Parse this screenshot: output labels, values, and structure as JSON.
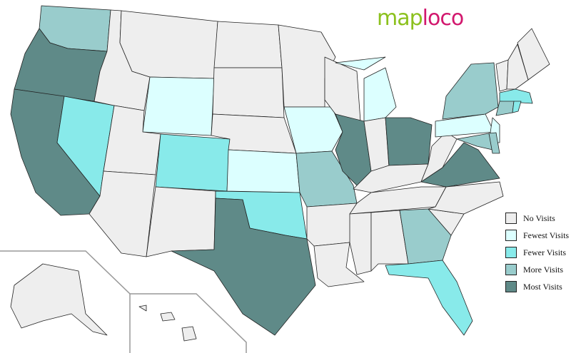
{
  "logo": {
    "part1": "map",
    "part2": "loco"
  },
  "colors": {
    "none": "#eeeeee",
    "fewest": "#dcffff",
    "fewer": "#88eaea",
    "more": "#99cccc",
    "most": "#5f8a88"
  },
  "legend": [
    {
      "key": "none",
      "label": "No Visits"
    },
    {
      "key": "fewest",
      "label": "Fewest Visits"
    },
    {
      "key": "fewer",
      "label": "Fewer Visits"
    },
    {
      "key": "more",
      "label": "More Visits"
    },
    {
      "key": "most",
      "label": "Most Visits"
    }
  ],
  "states": {
    "WA": "more",
    "OR": "most",
    "CA": "most",
    "NV": "fewer",
    "ID": "none",
    "MT": "none",
    "WY": "fewest",
    "UT": "none",
    "AZ": "none",
    "CO": "fewer",
    "NM": "none",
    "ND": "none",
    "SD": "none",
    "NE": "none",
    "KS": "fewest",
    "OK": "fewer",
    "TX": "most",
    "MN": "none",
    "IA": "fewest",
    "MO": "more",
    "AR": "none",
    "LA": "none",
    "WI": "none",
    "IL": "most",
    "MI": "fewest",
    "IN": "none",
    "OH": "most",
    "KY": "none",
    "TN": "none",
    "MS": "none",
    "AL": "none",
    "GA": "more",
    "FL": "fewer",
    "SC": "none",
    "NC": "none",
    "VA": "most",
    "WV": "none",
    "PA": "fewest",
    "NY": "more",
    "NJ": "fewest",
    "MD": "more",
    "DE": "more",
    "ME": "none",
    "VT": "none",
    "NH": "none",
    "MA": "fewer",
    "CT": "more",
    "RI": "fewer",
    "AK": "none",
    "HI": "none"
  }
}
